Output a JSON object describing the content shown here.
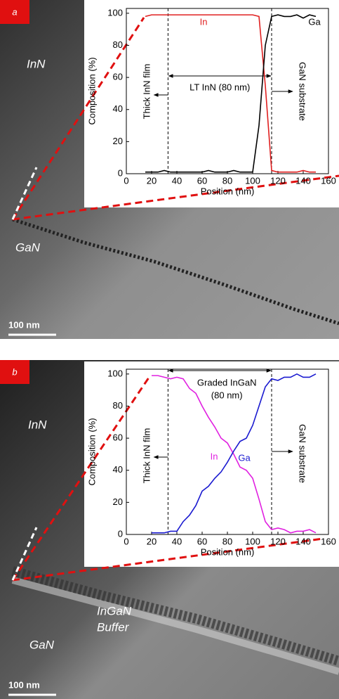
{
  "panels": [
    {
      "label": "a",
      "texts": [
        "InN",
        "GaN"
      ],
      "scale_bar": "100 nm"
    },
    {
      "label": "b",
      "texts": [
        "InN",
        "InGaN",
        "Buffer",
        "GaN"
      ],
      "scale_bar": "100 nm"
    }
  ],
  "chart_data": [
    {
      "type": "line",
      "xlabel": "Position (nm)",
      "ylabel": "Composition (%)",
      "x": [
        15,
        20,
        25,
        30,
        35,
        40,
        45,
        50,
        55,
        60,
        65,
        70,
        75,
        80,
        85,
        90,
        95,
        100,
        105,
        110,
        115,
        120,
        125,
        130,
        135,
        140,
        145,
        150
      ],
      "series": [
        {
          "name": "In",
          "color": "#e02020",
          "values": [
            98,
            99,
            99,
            99,
            99,
            99,
            99,
            99,
            99,
            99,
            99,
            99,
            99,
            99,
            99,
            99,
            99,
            99,
            98,
            55,
            2,
            1,
            1,
            1,
            1,
            2,
            1,
            1
          ]
        },
        {
          "name": "Ga",
          "color": "#000000",
          "values": [
            1,
            1,
            1,
            2,
            1,
            1,
            1,
            1,
            1,
            1,
            2,
            1,
            1,
            1,
            2,
            1,
            1,
            1,
            30,
            80,
            98,
            99,
            98,
            98,
            99,
            97,
            99,
            98
          ]
        }
      ],
      "xlim": [
        0,
        160
      ],
      "ylim": [
        0,
        103
      ],
      "xticks": [
        0,
        20,
        40,
        60,
        80,
        100,
        120,
        140,
        160
      ],
      "yticks": [
        0,
        20,
        40,
        60,
        80,
        100
      ],
      "vlines": [
        33,
        115
      ],
      "annotations": [
        "LT InN (80 nm)",
        "Thick InN film",
        "GaN substrate"
      ]
    },
    {
      "type": "line",
      "xlabel": "Position (nm)",
      "ylabel": "Composition (%)",
      "x": [
        20,
        25,
        30,
        35,
        40,
        45,
        50,
        55,
        60,
        65,
        70,
        75,
        80,
        85,
        90,
        95,
        100,
        105,
        110,
        115,
        120,
        125,
        130,
        135,
        140,
        145,
        150
      ],
      "series": [
        {
          "name": "In",
          "color": "#e020e0",
          "values": [
            99,
            99,
            98,
            97,
            98,
            97,
            91,
            88,
            80,
            73,
            67,
            60,
            57,
            50,
            42,
            40,
            35,
            22,
            8,
            3,
            4,
            3,
            1,
            2,
            2,
            3,
            1
          ]
        },
        {
          "name": "Ga",
          "color": "#1a1ad0",
          "values": [
            1,
            1,
            1,
            2,
            2,
            8,
            12,
            18,
            27,
            30,
            35,
            39,
            45,
            52,
            58,
            60,
            68,
            80,
            92,
            97,
            96,
            98,
            98,
            100,
            98,
            98,
            100
          ]
        }
      ],
      "xlim": [
        0,
        160
      ],
      "ylim": [
        0,
        103
      ],
      "xticks": [
        0,
        20,
        40,
        60,
        80,
        100,
        120,
        140,
        160
      ],
      "yticks": [
        0,
        20,
        40,
        60,
        80,
        100
      ],
      "vlines": [
        33,
        115
      ],
      "annotations": [
        "Graded InGaN",
        "(80 nm)",
        "Thick InN film",
        "GaN substrate"
      ]
    }
  ]
}
